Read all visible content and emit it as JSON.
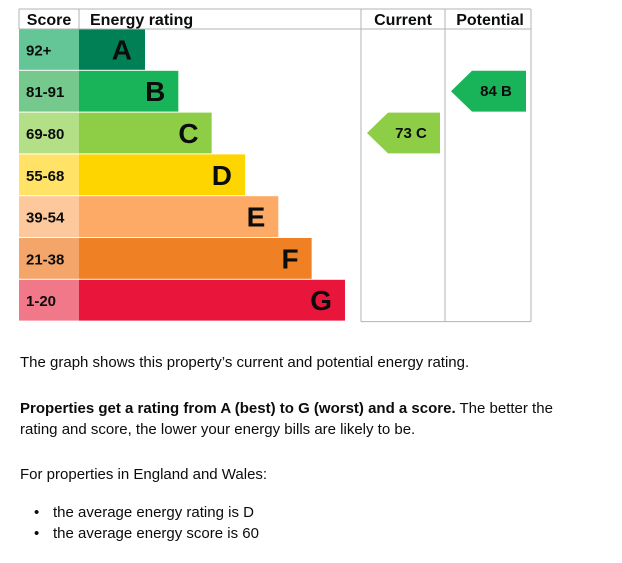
{
  "chart_data": {
    "type": "bar",
    "headers": {
      "score": "Score",
      "rating": "Energy rating",
      "current": "Current",
      "potential": "Potential"
    },
    "bands": [
      {
        "range": "92+",
        "letter": "A",
        "color": "#008054",
        "score_color": "#64c597"
      },
      {
        "range": "81-91",
        "letter": "B",
        "color": "#19b459",
        "score_color": "#76c98c"
      },
      {
        "range": "69-80",
        "letter": "C",
        "color": "#8dce46",
        "score_color": "#b3df87"
      },
      {
        "range": "55-68",
        "letter": "D",
        "color": "#ffd500",
        "score_color": "#ffe266"
      },
      {
        "range": "39-54",
        "letter": "E",
        "color": "#fcaa65",
        "score_color": "#fdc89c"
      },
      {
        "range": "21-38",
        "letter": "F",
        "color": "#ef8023",
        "score_color": "#f4a66a"
      },
      {
        "range": "1-20",
        "letter": "G",
        "color": "#e9153b",
        "score_color": "#f07888"
      }
    ],
    "current": {
      "score": 73,
      "band": "C",
      "label": "73 C",
      "color": "#8dce46"
    },
    "potential": {
      "score": 84,
      "band": "B",
      "label": "84 B",
      "color": "#19b459"
    }
  },
  "text": {
    "graph_desc": "The graph shows this property’s current and potential energy rating.",
    "rating_bold": "Properties get a rating from A (best) to G (worst) and a score.",
    "rating_rest": " The better the rating and score, the lower your energy bills are likely to be.",
    "region_intro": "For properties in England and Wales:",
    "averages": [
      "the average energy rating is D",
      "the average energy score is 60"
    ],
    "bullet": "•"
  }
}
